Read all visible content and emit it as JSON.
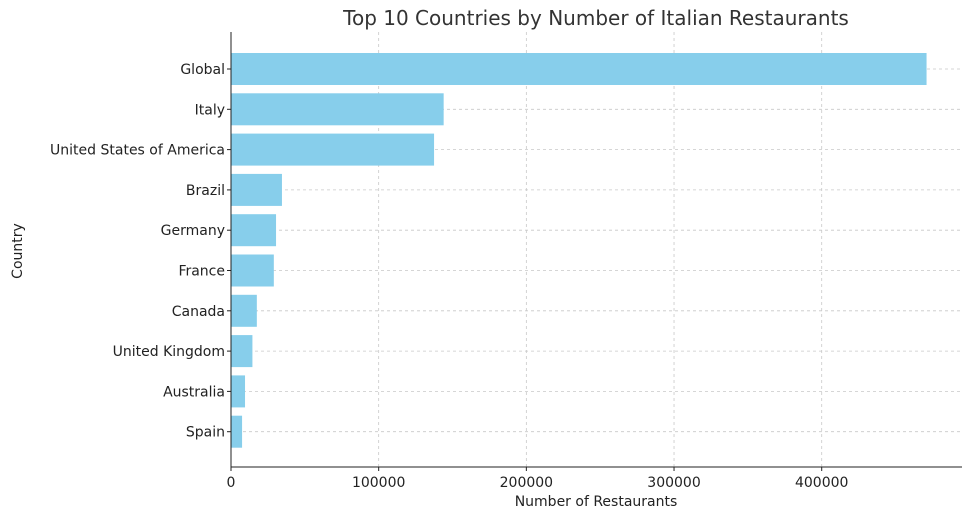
{
  "chart_data": {
    "type": "bar",
    "orientation": "horizontal",
    "title": "Top 10 Countries by Number of Italian Restaurants",
    "xlabel": "Number of Restaurants",
    "ylabel": "Country",
    "categories": [
      "Global",
      "Italy",
      "United States of America",
      "Brazil",
      "Germany",
      "France",
      "Canada",
      "United Kingdom",
      "Australia",
      "Spain"
    ],
    "values": [
      471000,
      144000,
      137500,
      34500,
      30500,
      29000,
      17500,
      14500,
      9500,
      7500
    ],
    "xlim": [
      0,
      495000
    ],
    "xticks": [
      0,
      100000,
      200000,
      300000,
      400000
    ],
    "xtick_labels": [
      "0",
      "100000",
      "200000",
      "300000",
      "400000"
    ],
    "grid": true,
    "bar_color": "#87ceeb"
  }
}
